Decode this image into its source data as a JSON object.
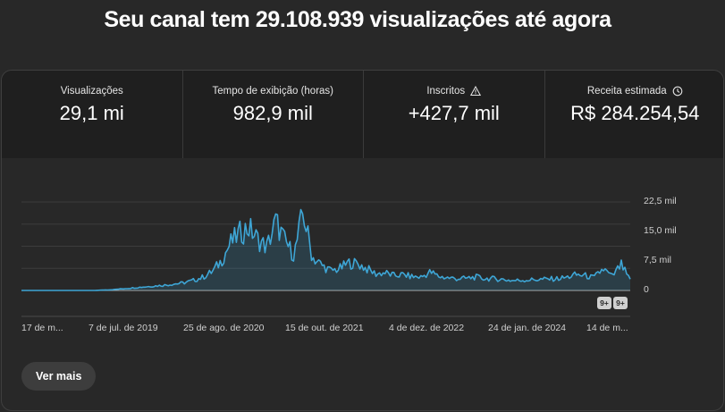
{
  "headline": "Seu canal tem 29.108.939 visualizações até agora",
  "metrics": [
    {
      "label": "Visualizações",
      "value": "29,1 mi",
      "icon": null
    },
    {
      "label": "Tempo de exibição (horas)",
      "value": "982,9 mil",
      "icon": null
    },
    {
      "label": "Inscritos",
      "value": "+427,7 mil",
      "icon": "warning-icon"
    },
    {
      "label": "Receita estimada",
      "value": "R$ 284.254,54",
      "icon": "clock-icon"
    }
  ],
  "chart_data": {
    "type": "area",
    "ytick_labels": [
      "22,5 mil",
      "15,0 mil",
      "7,5 mil",
      "0"
    ],
    "ylim": [
      0,
      22500
    ],
    "xtick_labels": [
      "17 de m...",
      "7 de jul. de 2019",
      "25 de ago. de 2020",
      "15 de out. de 2021",
      "4 de dez. de 2022",
      "24 de jan. de 2024",
      "14 de m..."
    ],
    "badges": [
      "9+",
      "9+"
    ],
    "series": [
      {
        "color": "#3ea6d6",
        "values": [
          0,
          0,
          0,
          0,
          0,
          0,
          0,
          0,
          0,
          100,
          200,
          400,
          600,
          800,
          1000,
          1200,
          1400,
          1700,
          2000,
          2600,
          3400,
          4800,
          7500,
          12000,
          14500,
          16000,
          13000,
          11000,
          17500,
          12500,
          9000,
          20000,
          8500,
          6500,
          5000,
          5500,
          7000,
          6800,
          5500,
          4200,
          4500,
          3800,
          4000,
          3500,
          3400,
          4700,
          3500,
          3200,
          3000,
          3100,
          3400,
          3000,
          3000,
          2800,
          2500,
          2600,
          2700,
          2800,
          2900,
          3000,
          3300,
          4000,
          3800,
          3200,
          5500,
          3500,
          6500,
          2500
        ]
      }
    ]
  },
  "button": {
    "label": "Ver mais"
  }
}
